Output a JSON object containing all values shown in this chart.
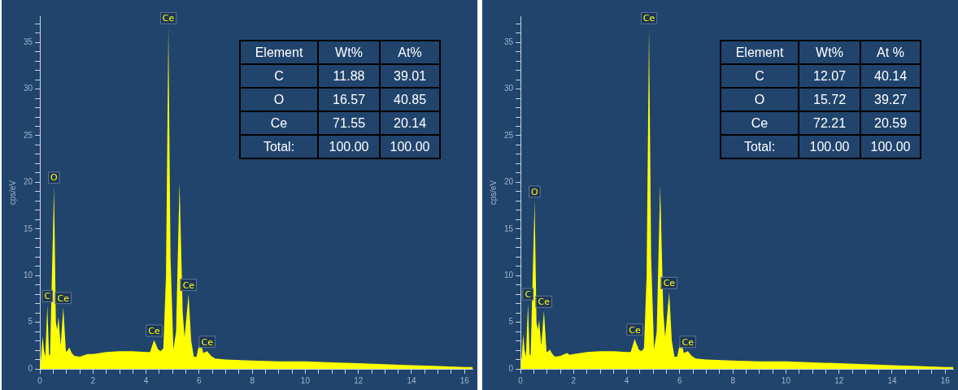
{
  "chart_data": [
    {
      "type": "area",
      "ylabel": "cps/eV",
      "color": "#ffff00",
      "grid": false,
      "legend": false,
      "xlim": [
        0,
        16.3
      ],
      "ylim": [
        0,
        37.8
      ],
      "xticks": [
        0,
        {
          "value": 0.5,
          "label": null
        },
        {
          "value": 1,
          "label": null
        },
        {
          "value": 1.5,
          "label": null
        },
        2,
        {
          "value": 2.5,
          "label": null
        },
        {
          "value": 3,
          "label": null
        },
        {
          "value": 3.5,
          "label": null
        },
        4,
        {
          "value": 4.5,
          "label": null
        },
        {
          "value": 5,
          "label": null
        },
        {
          "value": 5.5,
          "label": null
        },
        6,
        {
          "value": 6.5,
          "label": null
        },
        {
          "value": 7,
          "label": null
        },
        {
          "value": 7.5,
          "label": null
        },
        8,
        {
          "value": 8.5,
          "label": null
        },
        {
          "value": 9,
          "label": null
        },
        {
          "value": 9.5,
          "label": null
        },
        10,
        {
          "value": 10.5,
          "label": null
        },
        {
          "value": 11,
          "label": null
        },
        {
          "value": 11.5,
          "label": null
        },
        12,
        {
          "value": 12.5,
          "label": null
        },
        {
          "value": 13,
          "label": null
        },
        {
          "value": 13.5,
          "label": null
        },
        14,
        {
          "value": 14.5,
          "label": null
        },
        {
          "value": 15,
          "label": null
        },
        {
          "value": 15.5,
          "label": null
        },
        16
      ],
      "yticks": [
        0,
        {
          "value": 1,
          "label": null
        },
        {
          "value": 2,
          "label": null
        },
        {
          "value": 3,
          "label": null
        },
        {
          "value": 4,
          "label": null
        },
        5,
        {
          "value": 6,
          "label": null
        },
        {
          "value": 7,
          "label": null
        },
        {
          "value": 8,
          "label": null
        },
        {
          "value": 9,
          "label": null
        },
        10,
        {
          "value": 11,
          "label": null
        },
        {
          "value": 12,
          "label": null
        },
        {
          "value": 13,
          "label": null
        },
        {
          "value": 14,
          "label": null
        },
        15,
        {
          "value": 16,
          "label": null
        },
        {
          "value": 17,
          "label": null
        },
        {
          "value": 18,
          "label": null
        },
        {
          "value": 19,
          "label": null
        },
        20,
        {
          "value": 21,
          "label": null
        },
        {
          "value": 22,
          "label": null
        },
        {
          "value": 23,
          "label": null
        },
        {
          "value": 24,
          "label": null
        },
        25,
        {
          "value": 26,
          "label": null
        },
        {
          "value": 27,
          "label": null
        },
        {
          "value": 28,
          "label": null
        },
        {
          "value": 29,
          "label": null
        },
        30,
        {
          "value": 31,
          "label": null
        },
        {
          "value": 32,
          "label": null
        },
        {
          "value": 33,
          "label": null
        },
        {
          "value": 34,
          "label": null
        },
        35,
        {
          "value": 36,
          "label": null
        },
        {
          "value": 37,
          "label": null
        }
      ],
      "x": [
        0,
        0.05,
        0.1,
        0.15,
        0.2,
        0.28,
        0.34,
        0.38,
        0.53,
        0.6,
        0.65,
        0.7,
        0.78,
        0.88,
        0.98,
        1.05,
        1.1,
        1.2,
        1.3,
        1.5,
        1.7,
        1.8,
        2,
        2.5,
        3,
        3.5,
        4,
        4.15,
        4.3,
        4.45,
        4.55,
        4.65,
        4.75,
        4.84,
        4.92,
        5.03,
        5.13,
        5.26,
        5.38,
        5.45,
        5.6,
        5.7,
        5.8,
        5.9,
        6.04,
        6.15,
        6.3,
        6.45,
        6.6,
        7,
        8,
        9,
        10,
        11,
        12,
        13,
        14,
        15,
        16,
        16.3
      ],
      "values": [
        0,
        1.5,
        3.5,
        2,
        1.3,
        6.8,
        1.6,
        1.4,
        19.5,
        5,
        4.2,
        5.6,
        2.5,
        6.6,
        1.8,
        2,
        2.3,
        1.7,
        1.4,
        1.3,
        1.5,
        1.6,
        1.6,
        1.8,
        1.9,
        1.9,
        1.8,
        1.8,
        3.1,
        2.1,
        1.9,
        2.2,
        10,
        36.6,
        12,
        2.1,
        4,
        20,
        6,
        3.4,
        8,
        3,
        1.3,
        1.3,
        3.2,
        1.7,
        1.9,
        1.4,
        1.1,
        1,
        0.9,
        0.8,
        0.8,
        0.7,
        0.6,
        0.5,
        0.4,
        0.3,
        0.2,
        0.2
      ],
      "annotations": [
        "Element",
        "Wt%",
        "At%",
        "C",
        "11.88",
        "39.01",
        "O",
        "16.57",
        "40.85",
        "Ce",
        "71.55",
        "20.14",
        "Total:",
        "100.00",
        "100.00",
        {
          "text": "C",
          "x": 0.28,
          "y": 6.8
        },
        {
          "text": "O",
          "x": 0.53,
          "y": 19.5
        },
        {
          "text": "Ce",
          "x": 0.88,
          "y": 6.6
        },
        {
          "text": "Ce",
          "x": 4.3,
          "y": 3.1
        },
        {
          "text": "Ce",
          "x": 4.84,
          "y": 36.6
        },
        {
          "text": "Ce",
          "x": 5.6,
          "y": 8
        },
        {
          "text": "Ce",
          "x": 6.3,
          "y": 1.9
        }
      ]
    },
    {
      "type": "area",
      "ylabel": "cps/eV",
      "color": "#ffff00",
      "grid": false,
      "legend": false,
      "xlim": [
        0,
        16.3
      ],
      "ylim": [
        0,
        37.8
      ],
      "xticks": [
        0,
        {
          "value": 0.5,
          "label": null
        },
        {
          "value": 1,
          "label": null
        },
        {
          "value": 1.5,
          "label": null
        },
        2,
        {
          "value": 2.5,
          "label": null
        },
        {
          "value": 3,
          "label": null
        },
        {
          "value": 3.5,
          "label": null
        },
        4,
        {
          "value": 4.5,
          "label": null
        },
        {
          "value": 5,
          "label": null
        },
        {
          "value": 5.5,
          "label": null
        },
        6,
        {
          "value": 6.5,
          "label": null
        },
        {
          "value": 7,
          "label": null
        },
        {
          "value": 7.5,
          "label": null
        },
        8,
        {
          "value": 8.5,
          "label": null
        },
        {
          "value": 9,
          "label": null
        },
        {
          "value": 9.5,
          "label": null
        },
        10,
        {
          "value": 10.5,
          "label": null
        },
        {
          "value": 11,
          "label": null
        },
        {
          "value": 11.5,
          "label": null
        },
        12,
        {
          "value": 12.5,
          "label": null
        },
        {
          "value": 13,
          "label": null
        },
        {
          "value": 13.5,
          "label": null
        },
        14,
        {
          "value": 14.5,
          "label": null
        },
        {
          "value": 15,
          "label": null
        },
        {
          "value": 15.5,
          "label": null
        },
        16
      ],
      "yticks": [
        0,
        {
          "value": 1,
          "label": null
        },
        {
          "value": 2,
          "label": null
        },
        {
          "value": 3,
          "label": null
        },
        {
          "value": 4,
          "label": null
        },
        5,
        {
          "value": 6,
          "label": null
        },
        {
          "value": 7,
          "label": null
        },
        {
          "value": 8,
          "label": null
        },
        {
          "value": 9,
          "label": null
        },
        10,
        {
          "value": 11,
          "label": null
        },
        {
          "value": 12,
          "label": null
        },
        {
          "value": 13,
          "label": null
        },
        {
          "value": 14,
          "label": null
        },
        15,
        {
          "value": 16,
          "label": null
        },
        {
          "value": 17,
          "label": null
        },
        {
          "value": 18,
          "label": null
        },
        {
          "value": 19,
          "label": null
        },
        20,
        {
          "value": 21,
          "label": null
        },
        {
          "value": 22,
          "label": null
        },
        {
          "value": 23,
          "label": null
        },
        {
          "value": 24,
          "label": null
        },
        25,
        {
          "value": 26,
          "label": null
        },
        {
          "value": 27,
          "label": null
        },
        {
          "value": 28,
          "label": null
        },
        {
          "value": 29,
          "label": null
        },
        30,
        {
          "value": 31,
          "label": null
        },
        {
          "value": 32,
          "label": null
        },
        {
          "value": 33,
          "label": null
        },
        {
          "value": 34,
          "label": null
        },
        35,
        {
          "value": 36,
          "label": null
        },
        {
          "value": 37,
          "label": null
        }
      ],
      "x": [
        0,
        0.05,
        0.1,
        0.15,
        0.2,
        0.28,
        0.34,
        0.38,
        0.53,
        0.6,
        0.65,
        0.7,
        0.78,
        0.88,
        0.98,
        1.05,
        1.1,
        1.2,
        1.3,
        1.5,
        1.75,
        1.85,
        2,
        2.5,
        3,
        3.5,
        4,
        4.15,
        4.3,
        4.45,
        4.55,
        4.65,
        4.75,
        4.84,
        4.92,
        5.03,
        5.13,
        5.26,
        5.38,
        5.45,
        5.6,
        5.7,
        5.8,
        5.9,
        6.04,
        6.15,
        6.3,
        6.45,
        6.6,
        7,
        8,
        9,
        10,
        11,
        12,
        13,
        14,
        15,
        16,
        16.3
      ],
      "values": [
        0,
        1.5,
        3.7,
        2,
        1.3,
        7,
        1.6,
        1.4,
        18,
        5,
        4.2,
        5.2,
        2.5,
        6.2,
        1.8,
        1.9,
        2.1,
        1.6,
        1.3,
        1.4,
        1.7,
        1.5,
        1.6,
        1.8,
        1.9,
        1.9,
        1.8,
        1.8,
        3.2,
        2.1,
        1.9,
        2.2,
        10,
        36.6,
        12,
        2.1,
        4,
        19.7,
        6,
        3.4,
        8.2,
        3,
        1.3,
        1.3,
        3.2,
        1.7,
        1.9,
        1.4,
        1.1,
        1,
        0.9,
        0.8,
        0.8,
        0.7,
        0.6,
        0.5,
        0.4,
        0.3,
        0.2,
        0.2
      ],
      "annotations": [
        "Element",
        "Wt%",
        "At %",
        "C",
        "12.07",
        "40.14",
        "O",
        "15.72",
        "39.27",
        "Ce",
        "72.21",
        "20.59",
        "Total:",
        "100.00",
        "100.00",
        {
          "text": "C",
          "x": 0.28,
          "y": 7
        },
        {
          "text": "O",
          "x": 0.53,
          "y": 18
        },
        {
          "text": "Ce",
          "x": 0.88,
          "y": 6.2
        },
        {
          "text": "Ce",
          "x": 4.3,
          "y": 3.2
        },
        {
          "text": "Ce",
          "x": 4.84,
          "y": 36.6
        },
        {
          "text": "Ce",
          "x": 5.6,
          "y": 8.2
        },
        {
          "text": "Ce",
          "x": 6.3,
          "y": 1.9
        }
      ]
    }
  ]
}
